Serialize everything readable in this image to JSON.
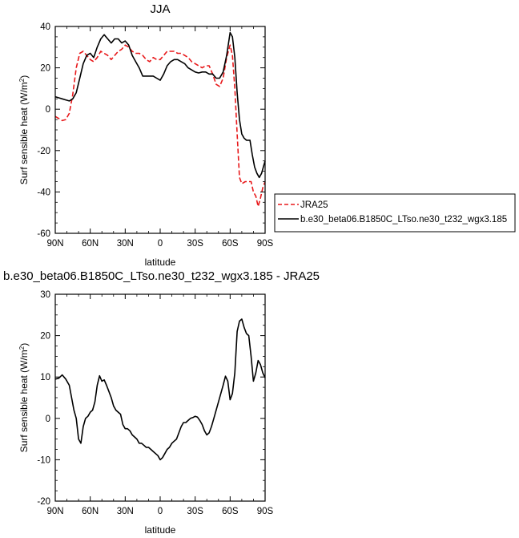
{
  "chart_data": [
    {
      "type": "line",
      "title": "JJA",
      "xlabel": "latitude",
      "ylabel": "Surf sensible heat (W/m",
      "ylabel_sup": "2",
      "ylabel_end": ")",
      "xlim": [
        90,
        -90
      ],
      "ylim": [
        -60,
        40
      ],
      "xticks": [
        90,
        60,
        30,
        0,
        -30,
        -60,
        -90
      ],
      "xtick_labels": [
        "90N",
        "60N",
        "30N",
        "0",
        "30S",
        "60S",
        "90S"
      ],
      "yticks": [
        -60,
        -40,
        -20,
        0,
        20,
        40
      ],
      "ytick_labels": [
        "-60",
        "-40",
        "-20",
        "0",
        "20",
        "40"
      ],
      "legend_position": "right",
      "series": [
        {
          "name": "JRA25",
          "color": "#e8191b",
          "dash": "dashed",
          "points": [
            [
              90,
              -3.5
            ],
            [
              87,
              -4.5
            ],
            [
              84,
              -5.5
            ],
            [
              81,
              -5
            ],
            [
              78,
              -2
            ],
            [
              75,
              7
            ],
            [
              72,
              20
            ],
            [
              69,
              27
            ],
            [
              66,
              28
            ],
            [
              63,
              26
            ],
            [
              60,
              24
            ],
            [
              57,
              23
            ],
            [
              54,
              25
            ],
            [
              51,
              28
            ],
            [
              48,
              27
            ],
            [
              45,
              26
            ],
            [
              42,
              24
            ],
            [
              39,
              26
            ],
            [
              36,
              28
            ],
            [
              33,
              29
            ],
            [
              30,
              31
            ],
            [
              27,
              30
            ],
            [
              24,
              28
            ],
            [
              21,
              27
            ],
            [
              18,
              27
            ],
            [
              15,
              26
            ],
            [
              12,
              24
            ],
            [
              9,
              23
            ],
            [
              6,
              25
            ],
            [
              3,
              24
            ],
            [
              0,
              24
            ],
            [
              -3,
              26
            ],
            [
              -6,
              28
            ],
            [
              -9,
              28
            ],
            [
              -12,
              28
            ],
            [
              -15,
              27
            ],
            [
              -18,
              27
            ],
            [
              -21,
              26
            ],
            [
              -24,
              25
            ],
            [
              -27,
              23
            ],
            [
              -30,
              22
            ],
            [
              -33,
              21
            ],
            [
              -36,
              20
            ],
            [
              -39,
              21
            ],
            [
              -42,
              21
            ],
            [
              -45,
              17
            ],
            [
              -48,
              12
            ],
            [
              -51,
              11
            ],
            [
              -54,
              15
            ],
            [
              -57,
              25
            ],
            [
              -60,
              31
            ],
            [
              -62,
              26
            ],
            [
              -64,
              10
            ],
            [
              -66,
              -12
            ],
            [
              -68,
              -33
            ],
            [
              -70,
              -36
            ],
            [
              -73,
              -35
            ],
            [
              -76,
              -35
            ],
            [
              -78,
              -35
            ],
            [
              -80,
              -40
            ],
            [
              -82,
              -42
            ],
            [
              -84,
              -47
            ],
            [
              -86,
              -43
            ],
            [
              -88,
              -38
            ],
            [
              -90,
              -35
            ]
          ]
        },
        {
          "name": "b.e30_beta06.B1850C_LTso.ne30_t232_wgx3.185",
          "color": "#000000",
          "dash": "solid",
          "points": [
            [
              90,
              6
            ],
            [
              87,
              5.5
            ],
            [
              84,
              5
            ],
            [
              81,
              4.5
            ],
            [
              78,
              4
            ],
            [
              75,
              5
            ],
            [
              72,
              8
            ],
            [
              69,
              15
            ],
            [
              66,
              22
            ],
            [
              63,
              26
            ],
            [
              60,
              27
            ],
            [
              57,
              25
            ],
            [
              54,
              30
            ],
            [
              51,
              34
            ],
            [
              48,
              36
            ],
            [
              45,
              34
            ],
            [
              42,
              32
            ],
            [
              39,
              34
            ],
            [
              36,
              34
            ],
            [
              33,
              32
            ],
            [
              30,
              33
            ],
            [
              27,
              31
            ],
            [
              24,
              26
            ],
            [
              21,
              23
            ],
            [
              18,
              20
            ],
            [
              15,
              16
            ],
            [
              12,
              16
            ],
            [
              9,
              16
            ],
            [
              6,
              16
            ],
            [
              3,
              15
            ],
            [
              0,
              14
            ],
            [
              -3,
              17
            ],
            [
              -6,
              21
            ],
            [
              -9,
              23
            ],
            [
              -12,
              24
            ],
            [
              -15,
              24
            ],
            [
              -18,
              23
            ],
            [
              -21,
              22
            ],
            [
              -24,
              20
            ],
            [
              -27,
              19
            ],
            [
              -30,
              18
            ],
            [
              -33,
              17.5
            ],
            [
              -36,
              18
            ],
            [
              -39,
              18
            ],
            [
              -42,
              17
            ],
            [
              -45,
              17
            ],
            [
              -48,
              15
            ],
            [
              -51,
              15
            ],
            [
              -54,
              18
            ],
            [
              -57,
              26
            ],
            [
              -60,
              37
            ],
            [
              -62,
              35
            ],
            [
              -64,
              25
            ],
            [
              -66,
              8
            ],
            [
              -68,
              -5
            ],
            [
              -70,
              -12
            ],
            [
              -72,
              -14
            ],
            [
              -74,
              -15
            ],
            [
              -77,
              -15
            ],
            [
              -79,
              -22
            ],
            [
              -81,
              -28
            ],
            [
              -83,
              -31
            ],
            [
              -85,
              -33
            ],
            [
              -87,
              -31
            ],
            [
              -89,
              -27
            ],
            [
              -90,
              -25
            ]
          ]
        }
      ]
    },
    {
      "type": "line",
      "title": "b.e30_beta06.B1850C_LTso.ne30_t232_wgx3.185 - JRA25",
      "xlabel": "latitude",
      "ylabel": "Surf sensible heat (W/m",
      "ylabel_sup": "2",
      "ylabel_end": ")",
      "xlim": [
        90,
        -90
      ],
      "ylim": [
        -20,
        30
      ],
      "xticks": [
        90,
        60,
        30,
        0,
        -30,
        -60,
        -90
      ],
      "xtick_labels": [
        "90N",
        "60N",
        "30N",
        "0",
        "30S",
        "60S",
        "90S"
      ],
      "yticks": [
        -20,
        -10,
        0,
        10,
        20,
        30
      ],
      "ytick_labels": [
        "-20",
        "-10",
        "0",
        "10",
        "20",
        "30"
      ],
      "series": [
        {
          "color": "#000000",
          "dash": "solid",
          "points": [
            [
              90,
              9.5
            ],
            [
              87,
              9.7
            ],
            [
              84,
              10.5
            ],
            [
              81,
              9.5
            ],
            [
              78,
              8
            ],
            [
              76,
              5
            ],
            [
              74,
              2
            ],
            [
              72,
              0
            ],
            [
              70,
              -5
            ],
            [
              68,
              -6
            ],
            [
              66,
              -2
            ],
            [
              64,
              0
            ],
            [
              62,
              0.5
            ],
            [
              60,
              1.5
            ],
            [
              58,
              2
            ],
            [
              56,
              4
            ],
            [
              54,
              8
            ],
            [
              52,
              10.3
            ],
            [
              50,
              9
            ],
            [
              48,
              9.3
            ],
            [
              46,
              8
            ],
            [
              44,
              6.5
            ],
            [
              42,
              5
            ],
            [
              40,
              3
            ],
            [
              38,
              2
            ],
            [
              36,
              1.5
            ],
            [
              34,
              1
            ],
            [
              32,
              -1.5
            ],
            [
              30,
              -2.5
            ],
            [
              28,
              -2.5
            ],
            [
              26,
              -3
            ],
            [
              24,
              -4
            ],
            [
              22,
              -4.5
            ],
            [
              20,
              -5
            ],
            [
              18,
              -6
            ],
            [
              16,
              -6
            ],
            [
              14,
              -6.5
            ],
            [
              12,
              -7
            ],
            [
              10,
              -7
            ],
            [
              8,
              -7.5
            ],
            [
              6,
              -8
            ],
            [
              4,
              -8.5
            ],
            [
              2,
              -9
            ],
            [
              0,
              -10
            ],
            [
              -2,
              -9.5
            ],
            [
              -4,
              -8.5
            ],
            [
              -6,
              -7.5
            ],
            [
              -8,
              -7
            ],
            [
              -10,
              -6
            ],
            [
              -12,
              -5.5
            ],
            [
              -14,
              -5
            ],
            [
              -16,
              -3.5
            ],
            [
              -18,
              -2
            ],
            [
              -20,
              -1
            ],
            [
              -22,
              -1
            ],
            [
              -24,
              -0.5
            ],
            [
              -26,
              0
            ],
            [
              -28,
              0.2
            ],
            [
              -30,
              0.5
            ],
            [
              -32,
              0.3
            ],
            [
              -34,
              -0.5
            ],
            [
              -36,
              -1.5
            ],
            [
              -38,
              -3
            ],
            [
              -40,
              -4
            ],
            [
              -42,
              -3.5
            ],
            [
              -44,
              -2
            ],
            [
              -46,
              0
            ],
            [
              -48,
              2
            ],
            [
              -50,
              4
            ],
            [
              -52,
              6
            ],
            [
              -54,
              8
            ],
            [
              -56,
              10.2
            ],
            [
              -58,
              9
            ],
            [
              -60,
              4.5
            ],
            [
              -62,
              6
            ],
            [
              -64,
              11
            ],
            [
              -66,
              21
            ],
            [
              -68,
              23.5
            ],
            [
              -70,
              24
            ],
            [
              -72,
              22
            ],
            [
              -74,
              20.5
            ],
            [
              -76,
              20
            ],
            [
              -78,
              15
            ],
            [
              -80,
              9
            ],
            [
              -82,
              11
            ],
            [
              -84,
              14
            ],
            [
              -86,
              13
            ],
            [
              -88,
              11
            ],
            [
              -90,
              9.8
            ]
          ]
        }
      ]
    }
  ]
}
